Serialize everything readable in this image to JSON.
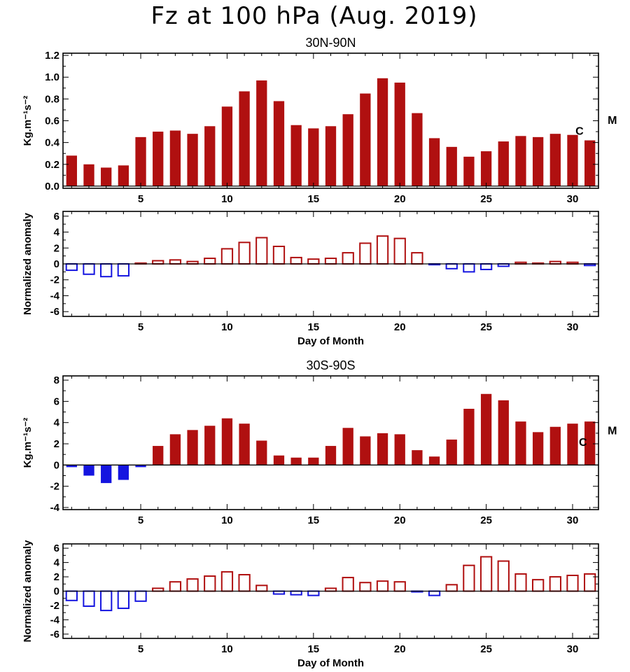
{
  "title": "Fz at 100 hPa (Aug. 2019)",
  "colors": {
    "positive": "#b01010",
    "negative": "#1515e0",
    "axis": "#000000"
  },
  "chart_data": [
    {
      "type": "bar",
      "title": "30N-90N",
      "ylabel": "Kg.m⁻¹s⁻²",
      "xlabel": "",
      "fill": "solid",
      "x": [
        1,
        2,
        3,
        4,
        5,
        6,
        7,
        8,
        9,
        10,
        11,
        12,
        13,
        14,
        15,
        16,
        17,
        18,
        19,
        20,
        21,
        22,
        23,
        24,
        25,
        26,
        27,
        28,
        29,
        30,
        31
      ],
      "values": [
        0.28,
        0.2,
        0.17,
        0.19,
        0.45,
        0.5,
        0.51,
        0.48,
        0.55,
        0.73,
        0.87,
        0.97,
        0.78,
        0.56,
        0.53,
        0.55,
        0.66,
        0.85,
        0.99,
        0.95,
        0.67,
        0.44,
        0.36,
        0.27,
        0.32,
        0.41,
        0.46,
        0.45,
        0.48,
        0.47,
        0.42
      ],
      "xlim": [
        0.5,
        31.5
      ],
      "ylim": [
        -0.02,
        1.22
      ],
      "yticks": [
        0.0,
        0.2,
        0.4,
        0.6,
        0.8,
        1.0,
        1.2
      ],
      "ytick_labels": [
        "0.0",
        "0.2",
        "0.4",
        "0.6",
        "0.8",
        "1.0",
        "1.2"
      ],
      "xticks": [
        5,
        10,
        15,
        20,
        25,
        30
      ],
      "xtick_labels": [
        "5",
        "10",
        "15",
        "20",
        "25",
        "30"
      ],
      "markers": [
        {
          "label": "C",
          "x": 30.4,
          "y": 0.47
        },
        {
          "label": "M",
          "x": 32.3,
          "y": 0.57
        }
      ]
    },
    {
      "type": "bar",
      "title": "",
      "ylabel": "Normalized anomaly",
      "xlabel": "Day of Month",
      "fill": "outline",
      "x": [
        1,
        2,
        3,
        4,
        5,
        6,
        7,
        8,
        9,
        10,
        11,
        12,
        13,
        14,
        15,
        16,
        17,
        18,
        19,
        20,
        21,
        22,
        23,
        24,
        25,
        26,
        27,
        28,
        29,
        30,
        31
      ],
      "values": [
        -0.8,
        -1.3,
        -1.6,
        -1.5,
        0.1,
        0.4,
        0.5,
        0.3,
        0.7,
        1.9,
        2.7,
        3.3,
        2.2,
        0.8,
        0.6,
        0.7,
        1.4,
        2.6,
        3.5,
        3.2,
        1.4,
        -0.1,
        -0.6,
        -1.0,
        -0.7,
        -0.3,
        0.2,
        0.1,
        0.3,
        0.2,
        -0.2
      ],
      "xlim": [
        0.5,
        31.5
      ],
      "ylim": [
        -6.6,
        6.6
      ],
      "yticks": [
        -6,
        -4,
        -2,
        0,
        2,
        4,
        6
      ],
      "ytick_labels": [
        "-6",
        "-4",
        "-2",
        "0",
        "2",
        "4",
        "6"
      ],
      "xticks": [
        5,
        10,
        15,
        20,
        25,
        30
      ],
      "xtick_labels": [
        "5",
        "10",
        "15",
        "20",
        "25",
        "30"
      ]
    },
    {
      "type": "bar",
      "title": "30S-90S",
      "ylabel": "Kg.m⁻¹s⁻²",
      "xlabel": "",
      "fill": "solid",
      "x": [
        1,
        2,
        3,
        4,
        5,
        6,
        7,
        8,
        9,
        10,
        11,
        12,
        13,
        14,
        15,
        16,
        17,
        18,
        19,
        20,
        21,
        22,
        23,
        24,
        25,
        26,
        27,
        28,
        29,
        30,
        31
      ],
      "values": [
        -0.2,
        -1.0,
        -1.7,
        -1.4,
        -0.2,
        1.8,
        2.9,
        3.3,
        3.7,
        4.4,
        3.9,
        2.3,
        0.9,
        0.7,
        0.7,
        1.8,
        3.5,
        2.7,
        3.0,
        2.9,
        1.4,
        0.8,
        2.4,
        5.3,
        6.7,
        6.1,
        4.1,
        3.1,
        3.6,
        3.9,
        4.1
      ],
      "xlim": [
        0.5,
        31.5
      ],
      "ylim": [
        -4.2,
        8.4
      ],
      "yticks": [
        -4,
        -2,
        0,
        2,
        4,
        6,
        8
      ],
      "ytick_labels": [
        "-4",
        "-2",
        "0",
        "2",
        "4",
        "6",
        "8"
      ],
      "xticks": [
        5,
        10,
        15,
        20,
        25,
        30
      ],
      "xtick_labels": [
        "5",
        "10",
        "15",
        "20",
        "25",
        "30"
      ],
      "markers": [
        {
          "label": "C",
          "x": 30.6,
          "y": 1.8
        },
        {
          "label": "M",
          "x": 32.3,
          "y": 2.9
        }
      ]
    },
    {
      "type": "bar",
      "title": "",
      "ylabel": "Normalized anomaly",
      "xlabel": "Day of Month",
      "fill": "outline",
      "x": [
        1,
        2,
        3,
        4,
        5,
        6,
        7,
        8,
        9,
        10,
        11,
        12,
        13,
        14,
        15,
        16,
        17,
        18,
        19,
        20,
        21,
        22,
        23,
        24,
        25,
        26,
        27,
        28,
        29,
        30,
        31
      ],
      "values": [
        -1.3,
        -2.1,
        -2.7,
        -2.4,
        -1.4,
        0.4,
        1.3,
        1.7,
        2.1,
        2.7,
        2.3,
        0.8,
        -0.4,
        -0.5,
        -0.6,
        0.4,
        1.9,
        1.2,
        1.4,
        1.3,
        -0.1,
        -0.6,
        0.9,
        3.6,
        4.8,
        4.2,
        2.4,
        1.6,
        2.0,
        2.2,
        2.4
      ],
      "xlim": [
        0.5,
        31.5
      ],
      "ylim": [
        -6.6,
        6.6
      ],
      "yticks": [
        -6,
        -4,
        -2,
        0,
        2,
        4,
        6
      ],
      "ytick_labels": [
        "-6",
        "-4",
        "-2",
        "0",
        "2",
        "4",
        "6"
      ],
      "xticks": [
        5,
        10,
        15,
        20,
        25,
        30
      ],
      "xtick_labels": [
        "5",
        "10",
        "15",
        "20",
        "25",
        "30"
      ]
    }
  ]
}
